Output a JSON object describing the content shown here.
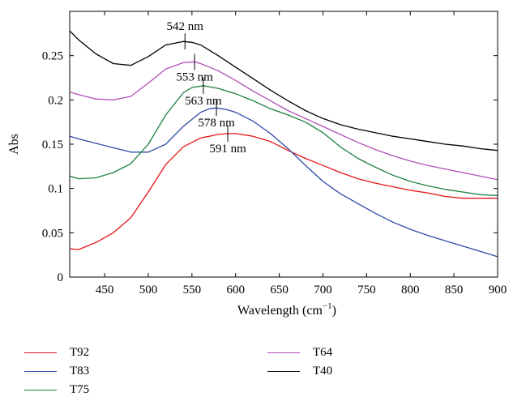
{
  "chart_data": {
    "type": "line",
    "title": "",
    "xlabel": "Wavelength (cm",
    "xlabel_sup": "−1",
    "xlabel_close": ")",
    "ylabel": "Abs",
    "xlim": [
      410,
      900
    ],
    "ylim": [
      0,
      0.3
    ],
    "xticks": [
      450,
      500,
      550,
      600,
      650,
      700,
      750,
      800,
      850,
      900
    ],
    "yticks": [
      0,
      0.05,
      0.1,
      0.15,
      0.2,
      0.25
    ],
    "ytick_labels": [
      "0",
      "0.05",
      "0.1",
      "0.15",
      "0.2",
      "0.25"
    ],
    "grid": false,
    "legend_position": "bottom",
    "series": [
      {
        "name": "T92",
        "color": "#e8141b",
        "x": [
          410,
          420,
          440,
          460,
          480,
          500,
          520,
          540,
          560,
          580,
          590,
          600,
          620,
          640,
          660,
          680,
          700,
          720,
          740,
          760,
          780,
          800,
          820,
          840,
          860,
          880,
          900
        ],
        "y": [
          0.032,
          0.031,
          0.039,
          0.05,
          0.067,
          0.096,
          0.127,
          0.147,
          0.157,
          0.161,
          0.162,
          0.162,
          0.159,
          0.153,
          0.143,
          0.134,
          0.126,
          0.118,
          0.111,
          0.106,
          0.102,
          0.098,
          0.095,
          0.091,
          0.089,
          0.089,
          0.089
        ]
      },
      {
        "name": "T83",
        "color": "#2d4aa5",
        "x": [
          410,
          420,
          440,
          460,
          480,
          500,
          520,
          540,
          560,
          570,
          578,
          590,
          600,
          620,
          640,
          660,
          680,
          700,
          720,
          740,
          760,
          780,
          800,
          820,
          840,
          860,
          880,
          900
        ],
        "y": [
          0.159,
          0.156,
          0.151,
          0.146,
          0.141,
          0.141,
          0.15,
          0.17,
          0.186,
          0.19,
          0.191,
          0.189,
          0.186,
          0.176,
          0.162,
          0.145,
          0.126,
          0.108,
          0.094,
          0.083,
          0.072,
          0.062,
          0.054,
          0.047,
          0.041,
          0.035,
          0.029,
          0.023
        ]
      },
      {
        "name": "T75",
        "color": "#1a8040",
        "x": [
          410,
          420,
          440,
          460,
          480,
          500,
          520,
          540,
          550,
          563,
          580,
          600,
          620,
          640,
          660,
          680,
          700,
          720,
          740,
          760,
          780,
          800,
          820,
          840,
          860,
          880,
          900
        ],
        "y": [
          0.114,
          0.111,
          0.112,
          0.118,
          0.128,
          0.15,
          0.183,
          0.208,
          0.214,
          0.216,
          0.213,
          0.207,
          0.199,
          0.19,
          0.183,
          0.175,
          0.163,
          0.147,
          0.134,
          0.124,
          0.115,
          0.108,
          0.103,
          0.099,
          0.096,
          0.093,
          0.092
        ]
      },
      {
        "name": "T64",
        "color": "#b14fb6",
        "x": [
          410,
          420,
          440,
          460,
          480,
          500,
          520,
          540,
          553,
          560,
          580,
          600,
          620,
          640,
          660,
          680,
          700,
          720,
          740,
          760,
          780,
          800,
          820,
          840,
          860,
          880,
          900
        ],
        "y": [
          0.209,
          0.206,
          0.201,
          0.2,
          0.204,
          0.219,
          0.235,
          0.242,
          0.243,
          0.241,
          0.233,
          0.222,
          0.21,
          0.199,
          0.188,
          0.179,
          0.17,
          0.161,
          0.152,
          0.144,
          0.137,
          0.131,
          0.126,
          0.122,
          0.118,
          0.114,
          0.11
        ]
      },
      {
        "name": "T40",
        "color": "#000000",
        "x": [
          410,
          420,
          440,
          460,
          480,
          500,
          520,
          540,
          550,
          560,
          580,
          600,
          620,
          640,
          660,
          680,
          700,
          720,
          740,
          760,
          780,
          800,
          820,
          840,
          860,
          880,
          900
        ],
        "y": [
          0.278,
          0.268,
          0.252,
          0.241,
          0.239,
          0.249,
          0.262,
          0.266,
          0.265,
          0.262,
          0.25,
          0.237,
          0.224,
          0.211,
          0.199,
          0.188,
          0.179,
          0.172,
          0.167,
          0.163,
          0.159,
          0.156,
          0.153,
          0.15,
          0.148,
          0.145,
          0.143
        ]
      }
    ],
    "annotations": [
      {
        "text": "542 nm",
        "x": 542,
        "y": 0.266,
        "place": "above"
      },
      {
        "text": "553 nm",
        "x": 553,
        "y": 0.243,
        "place": "below"
      },
      {
        "text": "563 nm",
        "x": 563,
        "y": 0.216,
        "place": "below"
      },
      {
        "text": "578 nm",
        "x": 578,
        "y": 0.191,
        "place": "below"
      },
      {
        "text": "591 nm",
        "x": 591,
        "y": 0.162,
        "place": "below"
      }
    ]
  }
}
